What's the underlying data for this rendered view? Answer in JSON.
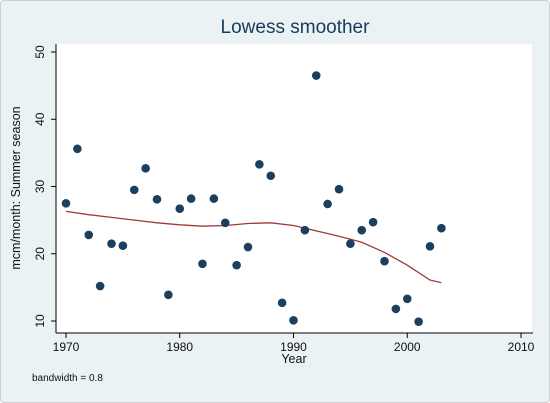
{
  "chart_data": {
    "type": "scatter",
    "title": "Lowess smoother",
    "xlabel": "Year",
    "ylabel": "mcm/month: Summer season",
    "xlim": [
      1970,
      2010
    ],
    "ylim": [
      10,
      50
    ],
    "xticks": [
      1970,
      1980,
      1990,
      2000,
      2010
    ],
    "yticks": [
      10,
      20,
      30,
      40,
      50
    ],
    "grid": false,
    "note": "bandwidth = 0.8",
    "colors": {
      "points": "#1d3f5f",
      "smoother": "#a03a3a"
    },
    "points": [
      {
        "x": 1970,
        "y": 27.5
      },
      {
        "x": 1971,
        "y": 35.6
      },
      {
        "x": 1972,
        "y": 22.8
      },
      {
        "x": 1973,
        "y": 15.2
      },
      {
        "x": 1974,
        "y": 21.5
      },
      {
        "x": 1975,
        "y": 21.2
      },
      {
        "x": 1976,
        "y": 29.5
      },
      {
        "x": 1977,
        "y": 32.7
      },
      {
        "x": 1978,
        "y": 28.1
      },
      {
        "x": 1979,
        "y": 13.9
      },
      {
        "x": 1980,
        "y": 26.7
      },
      {
        "x": 1981,
        "y": 28.2
      },
      {
        "x": 1982,
        "y": 18.5
      },
      {
        "x": 1983,
        "y": 28.2
      },
      {
        "x": 1984,
        "y": 24.6
      },
      {
        "x": 1985,
        "y": 18.3
      },
      {
        "x": 1986,
        "y": 21.0
      },
      {
        "x": 1987,
        "y": 33.3
      },
      {
        "x": 1988,
        "y": 31.6
      },
      {
        "x": 1989,
        "y": 12.7
      },
      {
        "x": 1990,
        "y": 10.1
      },
      {
        "x": 1991,
        "y": 23.5
      },
      {
        "x": 1992,
        "y": 46.5
      },
      {
        "x": 1993,
        "y": 27.4
      },
      {
        "x": 1994,
        "y": 29.6
      },
      {
        "x": 1995,
        "y": 21.5
      },
      {
        "x": 1996,
        "y": 23.5
      },
      {
        "x": 1997,
        "y": 24.7
      },
      {
        "x": 1998,
        "y": 18.9
      },
      {
        "x": 1999,
        "y": 11.8
      },
      {
        "x": 2000,
        "y": 13.3
      },
      {
        "x": 2001,
        "y": 9.9
      },
      {
        "x": 2002,
        "y": 21.1
      },
      {
        "x": 2003,
        "y": 23.8
      }
    ],
    "smoother": {
      "x": [
        1970,
        1972,
        1974,
        1976,
        1978,
        1980,
        1982,
        1984,
        1986,
        1988,
        1990,
        1992,
        1994,
        1996,
        1998,
        2000,
        2002,
        2003
      ],
      "y": [
        26.3,
        25.8,
        25.4,
        25.0,
        24.6,
        24.3,
        24.1,
        24.2,
        24.5,
        24.6,
        24.2,
        23.4,
        22.6,
        21.7,
        20.2,
        18.3,
        16.1,
        15.7
      ]
    }
  }
}
